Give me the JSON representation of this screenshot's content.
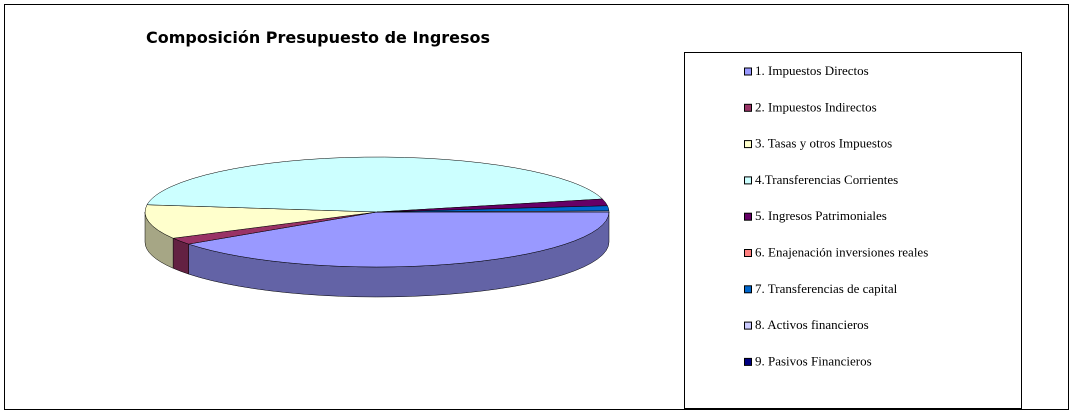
{
  "chart_data": {
    "type": "pie3d",
    "title": "Composición Presupuesto de Ingresos",
    "categories": [
      "1. Impuestos Directos",
      "2. Impuestos Indirectos",
      "3. Tasas y otros Impuestos",
      "4.Transferencias Corrientes",
      "5. Ingresos Patrimoniales",
      "6. Enajenación inversiones reales",
      "7. Transferencias de capital",
      "8. Activos financieros",
      "9. Pasivos Financieros"
    ],
    "values": [
      40,
      2,
      10,
      44,
      2,
      0,
      1.5,
      0.3,
      0
    ],
    "colors": [
      "#9999ff",
      "#993366",
      "#ffffcc",
      "#ccffff",
      "#660066",
      "#ff8080",
      "#0066cc",
      "#ccccff",
      "#000080"
    ],
    "legend": "right"
  }
}
